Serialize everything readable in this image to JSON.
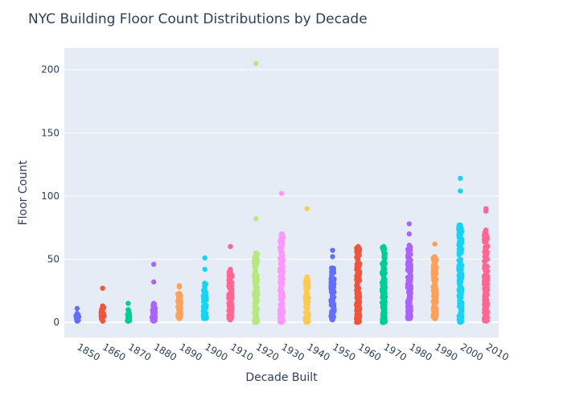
{
  "chart_data": {
    "type": "strip",
    "title": "NYC Building Floor Count Distributions by Decade",
    "xlabel": "Decade Built",
    "ylabel": "Floor Count",
    "ylim": [
      -12,
      217
    ],
    "yticks": [
      0,
      50,
      100,
      150,
      200
    ],
    "categories": [
      "1850",
      "1860",
      "1870",
      "1880",
      "1890",
      "1900",
      "1910",
      "1920",
      "1930",
      "1940",
      "1950",
      "1960",
      "1970",
      "1980",
      "1990",
      "2000",
      "2010"
    ],
    "grid": true,
    "legend": "none",
    "colors": [
      "#636efa",
      "#EF553B",
      "#00cc96",
      "#ab63fa",
      "#FFA15A",
      "#19d3f3",
      "#FF6692",
      "#B6E880",
      "#FF97FF",
      "#FECB52"
    ],
    "series": [
      {
        "category": "1850",
        "dense_range": [
          1,
          7
        ],
        "outliers": [
          11
        ]
      },
      {
        "category": "1860",
        "dense_range": [
          1,
          13
        ],
        "outliers": [
          27
        ]
      },
      {
        "category": "1870",
        "dense_range": [
          1,
          10
        ],
        "outliers": [
          15
        ]
      },
      {
        "category": "1880",
        "dense_range": [
          1,
          15
        ],
        "outliers": [
          32,
          46
        ]
      },
      {
        "category": "1890",
        "dense_range": [
          3,
          23
        ],
        "outliers": [
          28,
          29
        ]
      },
      {
        "category": "1900",
        "dense_range": [
          3,
          31
        ],
        "outliers": [
          42,
          51
        ]
      },
      {
        "category": "1910",
        "dense_range": [
          2,
          42
        ],
        "outliers": [
          60
        ]
      },
      {
        "category": "1920",
        "dense_range": [
          0,
          55
        ],
        "outliers": [
          82,
          205
        ]
      },
      {
        "category": "1930",
        "dense_range": [
          0,
          70
        ],
        "outliers": [
          102
        ]
      },
      {
        "category": "1940",
        "dense_range": [
          0,
          36
        ],
        "outliers": [
          90
        ]
      },
      {
        "category": "1950",
        "dense_range": [
          2,
          43
        ],
        "outliers": [
          52,
          57
        ]
      },
      {
        "category": "1960",
        "dense_range": [
          0,
          60
        ],
        "outliers": []
      },
      {
        "category": "1970",
        "dense_range": [
          0,
          60
        ],
        "outliers": []
      },
      {
        "category": "1980",
        "dense_range": [
          3,
          61
        ],
        "outliers": [
          70,
          78
        ]
      },
      {
        "category": "1990",
        "dense_range": [
          3,
          52
        ],
        "outliers": [
          62
        ]
      },
      {
        "category": "2000",
        "dense_range": [
          0,
          77
        ],
        "outliers": [
          104,
          114
        ]
      },
      {
        "category": "2010",
        "dense_range": [
          1,
          73
        ],
        "outliers": [
          88,
          90
        ]
      }
    ]
  }
}
